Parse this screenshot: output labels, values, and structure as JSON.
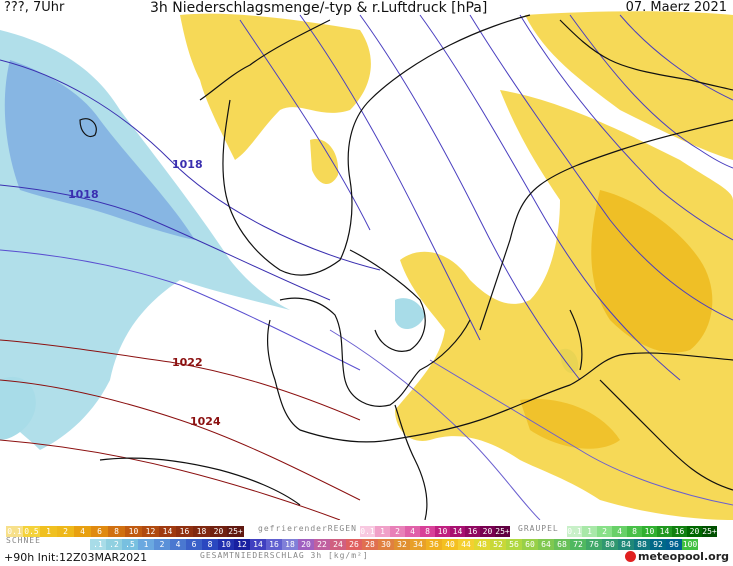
{
  "header": {
    "left": "???, 7Uhr",
    "center": "3h Niederschlagsmenge/-typ & r.Luftdruck [hPa]",
    "right": "07. Maerz 2021"
  },
  "isobars": [
    {
      "label": "1018",
      "color": "#3a2fb0"
    },
    {
      "label": "1018",
      "color": "#3a2fb0"
    },
    {
      "label": "1022",
      "color": "#8b1010"
    },
    {
      "label": "1024",
      "color": "#8b1010"
    }
  ],
  "legend": {
    "snow_title": "SCHNEE",
    "snow_values": [
      "0.1",
      "0.5",
      "1",
      "2",
      "4",
      "6",
      "8",
      "10",
      "12",
      "14",
      "16",
      "18",
      "20",
      "25+"
    ],
    "freezing_title": "gefrierenderREGEN",
    "freezing_values": [
      "0.1",
      "1",
      "2",
      "4",
      "8",
      "10",
      "14",
      "16",
      "20",
      "25+"
    ],
    "graupel_title": "GRAUPEL",
    "graupel_values": [
      "0.1",
      "1",
      "2",
      "4",
      "8",
      "10",
      "14",
      "16",
      "20",
      "25+"
    ],
    "rain_values": [
      ".1",
      ".2",
      ".5",
      "1",
      "2",
      "4",
      "6",
      "8",
      "10",
      "12",
      "14",
      "16",
      "18",
      "20",
      "22",
      "24",
      "26",
      "28",
      "30",
      "32",
      "34",
      "36",
      "40",
      "44",
      "48",
      "52",
      "56",
      "60",
      "64",
      "68",
      "72",
      "76",
      "80",
      "84",
      "88",
      "92",
      "96",
      "100"
    ],
    "rain_title": "GESAMTNIEDERSCHLAG 3h [kg/m²]"
  },
  "footer": {
    "run": "+90h Init:12Z03MAR2021",
    "brand": "meteopool.org"
  },
  "colors": {
    "snow": "#a8dce8",
    "snow_blue": "#7aa8e0",
    "rain_yellow": "#f4d23a",
    "rain_orange": "#eeb81a",
    "sea": "#ffffff",
    "coast": "#111111"
  }
}
